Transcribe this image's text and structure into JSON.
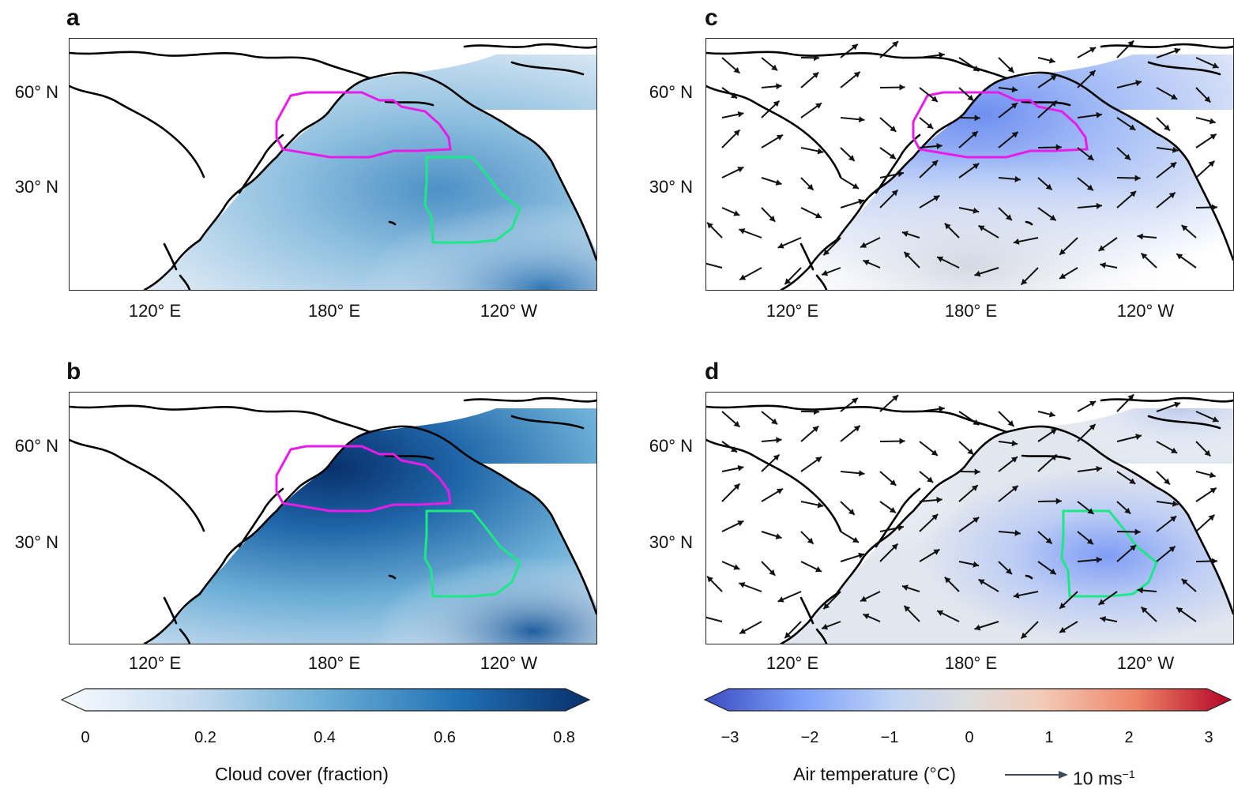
{
  "panels": [
    {
      "letter": "a"
    },
    {
      "letter": "b"
    },
    {
      "letter": "c"
    },
    {
      "letter": "d"
    }
  ],
  "axes": {
    "lat_labels": [
      "60° N",
      "30° N"
    ],
    "lon_labels": [
      "120° E",
      "180° E",
      "120° W"
    ]
  },
  "colorbar_left": {
    "title": "Cloud cover (fraction)",
    "ticks": [
      "0",
      "0.2",
      "0.4",
      "0.6",
      "0.8"
    ],
    "colors": [
      "#f7fbff",
      "#c6dbef",
      "#6baed6",
      "#2171b5",
      "#08306b"
    ]
  },
  "colorbar_right": {
    "title": "Air temperature (°C)",
    "ticks": [
      "−3",
      "−2",
      "−1",
      "0",
      "1",
      "2",
      "3"
    ],
    "colors": [
      "#3b4cc0",
      "#7b9ff9",
      "#c0d4f5",
      "#dddddd",
      "#f2cbb7",
      "#ee8468",
      "#b40426"
    ],
    "vector_key": "10 ms",
    "vector_key_sup": "−1"
  },
  "region_colors": {
    "north_box": "#e81ce8",
    "east_box": "#1de887",
    "coast": "#000000"
  }
}
